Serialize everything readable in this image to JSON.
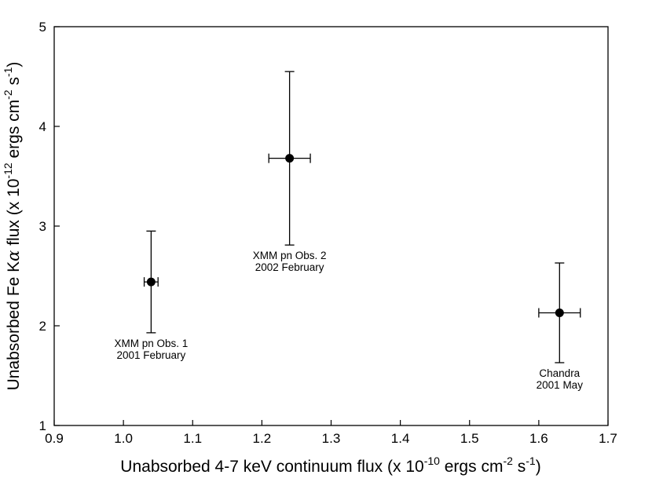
{
  "chart_data": {
    "type": "scatter",
    "xlabel": {
      "base": "Unabsorbed 4-7 keV continuum flux (x 10",
      "exp1": "-10",
      "mid": " ergs cm",
      "exp2": "-2",
      "tail": " s",
      "exp3": "-1",
      "close": ")"
    },
    "ylabel": {
      "base": "Unabsorbed Fe K",
      "alpha": "α",
      "mid1": " flux (x 10",
      "exp1": "-12",
      "mid2": " ergs cm",
      "exp2": "-2",
      "tail": " s",
      "exp3": "-1",
      "close": ")"
    },
    "xlim": [
      0.9,
      1.7
    ],
    "ylim": [
      1,
      5
    ],
    "xticks": [
      "0.9",
      "1.0",
      "1.1",
      "1.2",
      "1.3",
      "1.4",
      "1.5",
      "1.6",
      "1.7"
    ],
    "yticks": [
      "1",
      "2",
      "3",
      "4",
      "5"
    ],
    "grid": false,
    "points": [
      {
        "x": 1.04,
        "y": 2.44,
        "xerr": [
          1.03,
          1.05
        ],
        "yerr": [
          1.93,
          2.95
        ],
        "label": [
          "XMM pn Obs. 1",
          "2001 February"
        ]
      },
      {
        "x": 1.24,
        "y": 3.68,
        "xerr": [
          1.21,
          1.27
        ],
        "yerr": [
          2.81,
          4.55
        ],
        "label": [
          "XMM pn Obs. 2",
          "2002 February"
        ]
      },
      {
        "x": 1.63,
        "y": 2.13,
        "xerr": [
          1.6,
          1.66
        ],
        "yerr": [
          1.63,
          2.63
        ],
        "label": [
          "Chandra",
          "2001 May"
        ]
      }
    ]
  }
}
